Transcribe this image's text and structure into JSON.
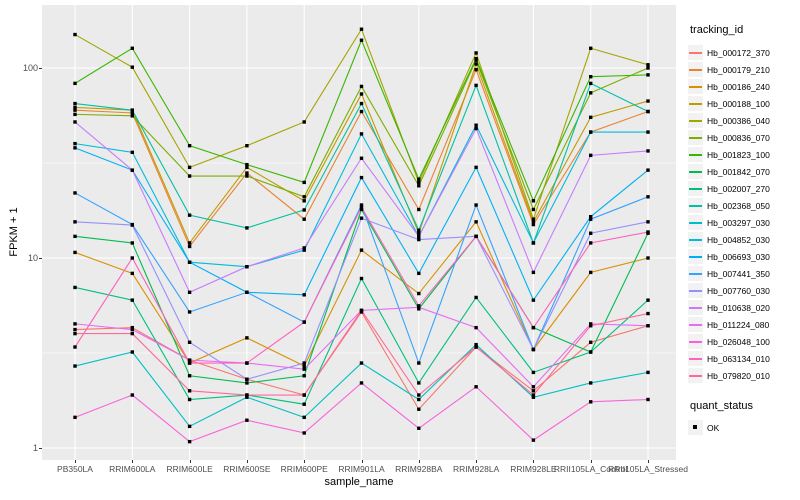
{
  "axes": {
    "x_title": "sample_name",
    "y_title": "FPKM + 1",
    "y_tick_labels": [
      "1",
      "10",
      "100"
    ]
  },
  "legend": {
    "tracking_title": "tracking_id",
    "quant_title": "quant_status",
    "quant_items": [
      "OK"
    ]
  },
  "colors": {
    "panel_background": "#EBEBEB",
    "gridline": "#FFFFFF",
    "tick_text": "#4D4D4D",
    "point": "#000000"
  },
  "chart_data": {
    "type": "line",
    "title": "",
    "xlabel": "sample_name",
    "ylabel": "FPKM + 1",
    "y_scale": "log10",
    "y_ticks": [
      1,
      10,
      100
    ],
    "y_minor_ticks": [
      3.162,
      31.62
    ],
    "ylim": [
      1,
      215
    ],
    "grid": true,
    "legend_position": "right",
    "legend_title": "tracking_id",
    "point_shape": "black-square",
    "quant_status_legend": {
      "title": "quant_status",
      "items": [
        "OK"
      ]
    },
    "categories": [
      "PB350LA",
      "RRIM600LA",
      "RRIM600LE",
      "RRIM600SE",
      "RRIM600PE",
      "RRIM901LA",
      "RRIM928BA",
      "RRIM928LA",
      "RRIM928LE",
      "RRII105LA_Control",
      "RRII105LA_Stressed"
    ],
    "series": [
      {
        "name": "Hb_000172_370",
        "color": "#F8766D",
        "values": [
          4.2,
          4.3,
          2.9,
          2.3,
          1.9,
          5.2,
          1.6,
          3.4,
          2.0,
          3.6,
          4.4
        ]
      },
      {
        "name": "Hb_000179_210",
        "color": "#EA8331",
        "values": [
          60,
          58,
          11.5,
          28,
          16,
          59,
          18,
          98,
          15,
          46,
          59
        ]
      },
      {
        "name": "Hb_000186_240",
        "color": "#D89000",
        "values": [
          10.7,
          8.3,
          2.8,
          3.8,
          2.7,
          11,
          6.5,
          15.5,
          3.3,
          8.4,
          10
        ]
      },
      {
        "name": "Hb_000188_100",
        "color": "#C09B00",
        "values": [
          62,
          60,
          12,
          30,
          20,
          73,
          13.5,
          105,
          15.5,
          55,
          67
        ]
      },
      {
        "name": "Hb_000386_040",
        "color": "#A3A500",
        "values": [
          150,
          101,
          30,
          39,
          52,
          160,
          25,
          120,
          16,
          127,
          104
        ]
      },
      {
        "name": "Hb_000836_070",
        "color": "#7CAE00",
        "values": [
          57,
          56,
          27,
          27,
          21,
          80,
          24,
          110,
          18,
          74,
          100
        ]
      },
      {
        "name": "Hb_001823_100",
        "color": "#39B600",
        "values": [
          83,
          127,
          39,
          31,
          25,
          140,
          26,
          112,
          20,
          90,
          92
        ]
      },
      {
        "name": "Hb_001842_070",
        "color": "#00BB4E",
        "values": [
          13,
          12,
          2.4,
          2.2,
          2.4,
          18,
          5.4,
          13,
          4.3,
          3.2,
          13.5
        ]
      },
      {
        "name": "Hb_002007_270",
        "color": "#00BF7D",
        "values": [
          7,
          6,
          1.8,
          1.9,
          1.7,
          7.8,
          2.2,
          6.2,
          2.5,
          3.2,
          6.0
        ]
      },
      {
        "name": "Hb_002368_050",
        "color": "#00C1A3",
        "values": [
          65,
          60,
          16.8,
          14.4,
          17.9,
          65,
          14,
          81,
          12,
          83,
          59
        ]
      },
      {
        "name": "Hb_003297_030",
        "color": "#00BFC4",
        "values": [
          2.7,
          3.2,
          1.3,
          1.85,
          1.45,
          2.8,
          1.8,
          3.5,
          1.85,
          2.2,
          2.5
        ]
      },
      {
        "name": "Hb_004852_030",
        "color": "#00BBDA",
        "values": [
          40,
          36,
          9.5,
          9,
          11,
          45,
          13,
          50,
          12,
          46,
          46
        ]
      },
      {
        "name": "Hb_006693_030",
        "color": "#00B0F6",
        "values": [
          38,
          29,
          9.5,
          6.6,
          6.4,
          26.5,
          8.3,
          30,
          6.0,
          16.5,
          29
        ]
      },
      {
        "name": "Hb_007441_350",
        "color": "#35A2FF",
        "values": [
          22,
          15,
          5.2,
          6.6,
          4.6,
          19,
          2.8,
          19,
          3.3,
          16,
          21
        ]
      },
      {
        "name": "Hb_007760_030",
        "color": "#9590FF",
        "values": [
          15.5,
          14.9,
          3.6,
          2.3,
          2.8,
          16.2,
          12.5,
          13,
          3.3,
          13.5,
          15.5
        ]
      },
      {
        "name": "Hb_010638_020",
        "color": "#C77CFF",
        "values": [
          52,
          29,
          6.6,
          9,
          11.3,
          33.5,
          13,
          48,
          8.4,
          34.7,
          36.6
        ]
      },
      {
        "name": "Hb_011224_080",
        "color": "#E76BF3",
        "values": [
          4.5,
          4.2,
          2.9,
          2.8,
          2.6,
          5.3,
          5.5,
          4.3,
          2.1,
          4.5,
          4.4
        ]
      },
      {
        "name": "Hb_026048_100",
        "color": "#FA62DB",
        "values": [
          1.45,
          1.9,
          1.08,
          1.4,
          1.2,
          2.2,
          1.27,
          2.1,
          1.1,
          1.75,
          1.8
        ]
      },
      {
        "name": "Hb_063134_010",
        "color": "#FF62BC",
        "values": [
          3.4,
          10,
          2.8,
          2.8,
          4.6,
          18.5,
          5.6,
          13,
          4.3,
          12,
          13.7
        ]
      },
      {
        "name": "Hb_079820_010",
        "color": "#FF6A98",
        "values": [
          4.0,
          4.0,
          2.0,
          1.9,
          1.9,
          5.3,
          1.9,
          3.4,
          1.9,
          4.4,
          5.1
        ]
      }
    ]
  }
}
